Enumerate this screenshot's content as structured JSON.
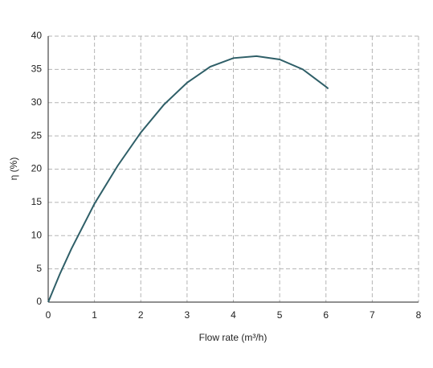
{
  "chart_data": {
    "type": "line",
    "x_label": "Flow rate (m³/h)",
    "y_label": "η (%)",
    "series": [
      {
        "name": "η",
        "color": "#2f5f68",
        "x": [
          0,
          0.25,
          0.5,
          1,
          1.5,
          2,
          2.5,
          3,
          3.5,
          4,
          4.5,
          5,
          5.5,
          6,
          6.05
        ],
        "values": [
          0,
          4.2,
          8,
          14.8,
          20.5,
          25.5,
          29.7,
          33,
          35.4,
          36.7,
          37,
          36.5,
          35,
          32.4,
          32.1
        ]
      }
    ],
    "xlim": [
      0,
      8
    ],
    "xticks": [
      0,
      1,
      2,
      3,
      4,
      5,
      6,
      7,
      8
    ],
    "ylim": [
      0,
      40
    ],
    "yticks": [
      0,
      5,
      10,
      15,
      20,
      25,
      30,
      35,
      40
    ],
    "grid": true
  }
}
